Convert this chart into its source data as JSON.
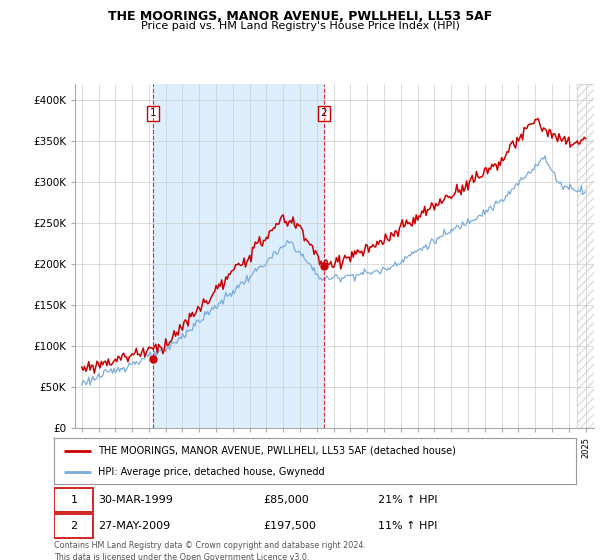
{
  "title": "THE MOORINGS, MANOR AVENUE, PWLLHELI, LL53 5AF",
  "subtitle": "Price paid vs. HM Land Registry's House Price Index (HPI)",
  "ylim": [
    0,
    420000
  ],
  "yticks": [
    0,
    50000,
    100000,
    150000,
    200000,
    250000,
    300000,
    350000,
    400000
  ],
  "ytick_labels": [
    "£0",
    "£50K",
    "£100K",
    "£150K",
    "£200K",
    "£250K",
    "£300K",
    "£350K",
    "£400K"
  ],
  "xlim_left": 1994.6,
  "xlim_right": 2025.5,
  "legend_property": "THE MOORINGS, MANOR AVENUE, PWLLHELI, LL53 5AF (detached house)",
  "legend_hpi": "HPI: Average price, detached house, Gwynedd",
  "property_color": "#cc0000",
  "hpi_color": "#7aaddb",
  "marker1_year": 1999.25,
  "marker1_value": 85000,
  "marker2_year": 2009.42,
  "marker2_value": 197500,
  "shade_color": "#ddeeff",
  "footnote": "Contains HM Land Registry data © Crown copyright and database right 2024.\nThis data is licensed under the Open Government Licence v3.0.",
  "background_color": "#ffffff",
  "grid_color": "#cccccc",
  "hatch_start": 2024.5
}
